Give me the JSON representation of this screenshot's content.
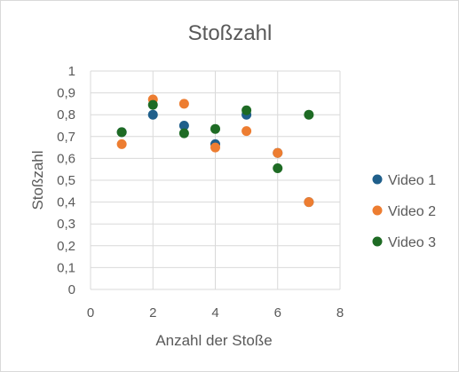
{
  "chart_data": {
    "type": "scatter",
    "title": "Stoßzahl",
    "xlabel": "Anzahl der Stoße",
    "ylabel": "Stoßzahl",
    "xlim": [
      0,
      8
    ],
    "ylim": [
      0,
      1
    ],
    "x_ticks": [
      0,
      2,
      4,
      6,
      8
    ],
    "y_ticks": [
      "0",
      "0,1",
      "0,2",
      "0,3",
      "0,4",
      "0,5",
      "0,6",
      "0,7",
      "0,8",
      "0,9",
      "1"
    ],
    "grid": "both",
    "legend_position": "right",
    "series": [
      {
        "name": "Video 1",
        "color": "#1f5f8b",
        "points": [
          [
            1,
            0.72
          ],
          [
            2,
            0.8
          ],
          [
            3,
            0.75
          ],
          [
            4,
            0.665
          ],
          [
            5,
            0.8
          ],
          [
            6,
            0.625
          ],
          [
            7,
            0.4
          ]
        ]
      },
      {
        "name": "Video 2",
        "color": "#ed7d31",
        "points": [
          [
            1,
            0.665
          ],
          [
            2,
            0.87
          ],
          [
            3,
            0.85
          ],
          [
            4,
            0.65
          ],
          [
            5,
            0.725
          ],
          [
            6,
            0.625
          ],
          [
            7,
            0.4
          ]
        ]
      },
      {
        "name": "Video 3",
        "color": "#1e6b24",
        "points": [
          [
            1,
            0.72
          ],
          [
            2,
            0.845
          ],
          [
            3,
            0.715
          ],
          [
            4,
            0.735
          ],
          [
            5,
            0.82
          ],
          [
            6,
            0.555
          ],
          [
            7,
            0.8
          ]
        ]
      }
    ]
  }
}
